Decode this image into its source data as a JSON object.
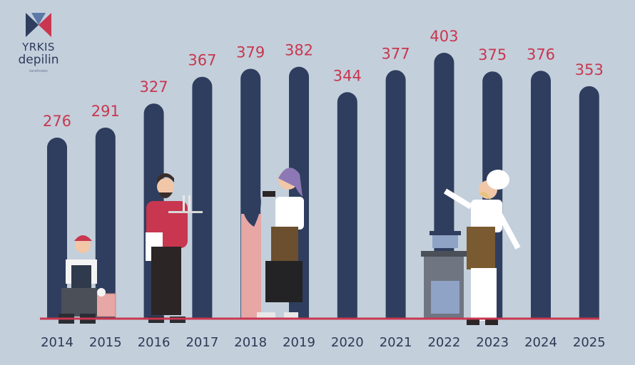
{
  "logo": {
    "line1": "YRKIS",
    "line2": "depilin",
    "tagline": "tarafından"
  },
  "colors": {
    "background": "#c3cfdb",
    "bar": "#2f3e5e",
    "value_label": "#c8374f",
    "baseline": "#c8374f",
    "year_label": "#2d3a55"
  },
  "chart_data": {
    "type": "bar",
    "categories": [
      "2014",
      "2015",
      "2016",
      "2017",
      "2018",
      "2019",
      "2020",
      "2021",
      "2022",
      "2023",
      "2024",
      "2025"
    ],
    "values": [
      276,
      291,
      327,
      367,
      379,
      382,
      344,
      377,
      403,
      375,
      376,
      353
    ],
    "title": "",
    "xlabel": "",
    "ylabel": "",
    "ylim": [
      0,
      403
    ],
    "grid": false,
    "legend": "none",
    "illustrations": [
      "worker-with-bricks",
      "waiter",
      "hairdresser",
      "chef"
    ]
  }
}
